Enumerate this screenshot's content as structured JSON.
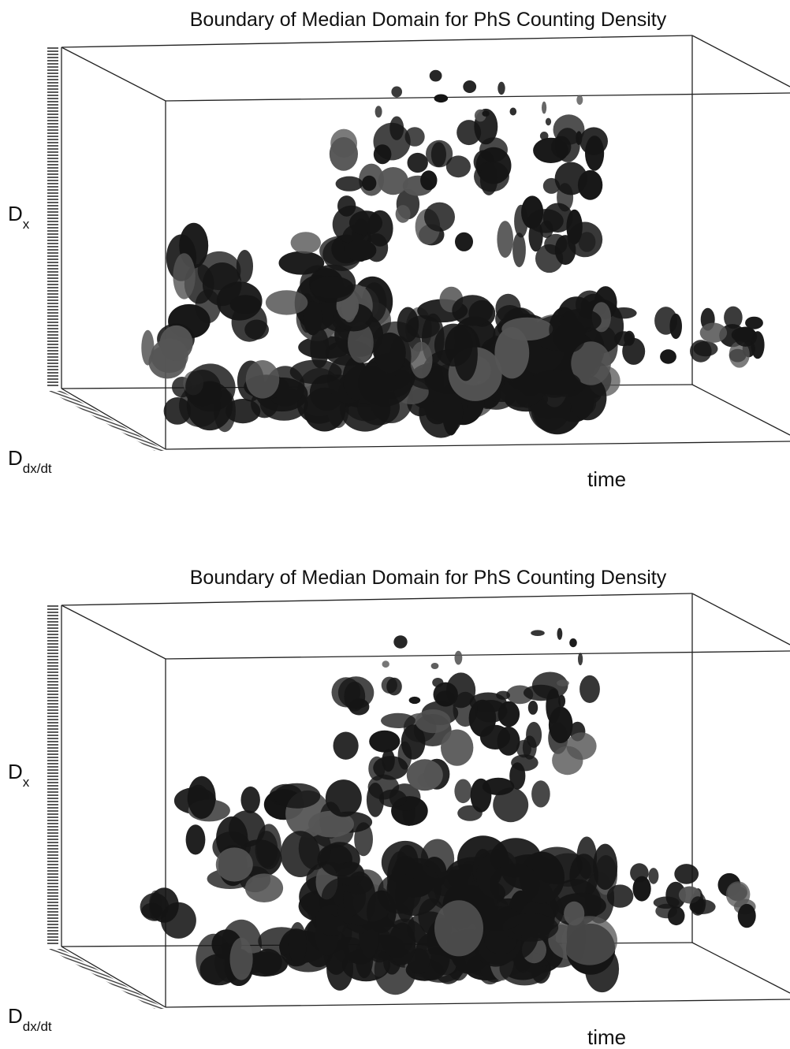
{
  "panels": [
    {
      "title": "Boundary of Median Domain for PhS Counting Density",
      "vertical_label": {
        "main": "D",
        "sub": "x"
      },
      "depth_label": {
        "main": "D",
        "sub": "dx/dt"
      },
      "horizontal_label": "time"
    },
    {
      "title": "Boundary of Median Domain for PhS Counting Density",
      "vertical_label": {
        "main": "D",
        "sub": "x"
      },
      "depth_label": {
        "main": "D",
        "sub": "dx/dt"
      },
      "horizontal_label": "time"
    }
  ]
}
